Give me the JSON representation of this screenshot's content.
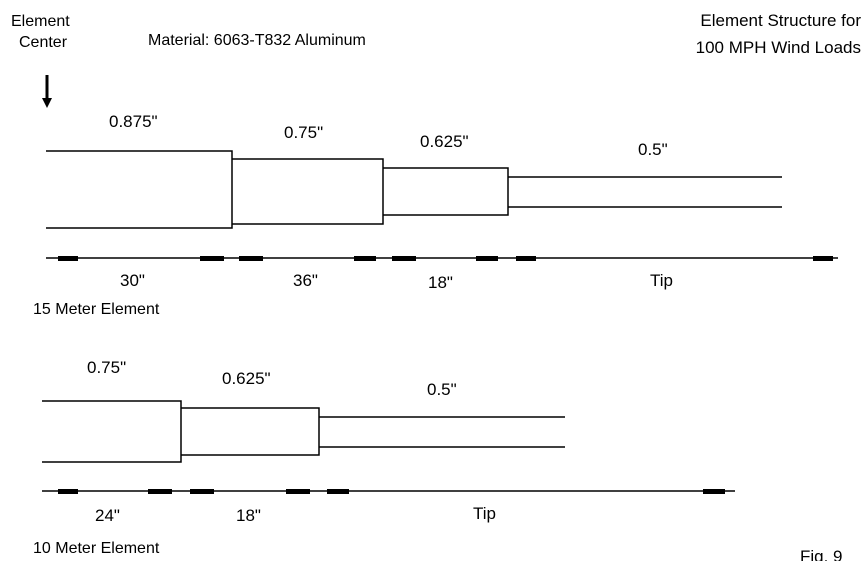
{
  "header": {
    "element_center_line1": "Element",
    "element_center_line2": "Center",
    "material": "Material: 6063-T832 Aluminum",
    "title_line1": "Element Structure for",
    "title_line2": "100 MPH Wind Loads"
  },
  "element15": {
    "diameters": [
      "0.875\"",
      "0.75\"",
      "0.625\"",
      "0.5\""
    ],
    "lengths": [
      "30\"",
      "36\"",
      "18\"",
      "Tip"
    ],
    "label": "15 Meter Element"
  },
  "element10": {
    "diameters": [
      "0.75\"",
      "0.625\"",
      "0.5\""
    ],
    "lengths": [
      "24\"",
      "18\"",
      "Tip"
    ],
    "label": "10 Meter Element"
  },
  "figure_label": "Fig. 9",
  "colors": {
    "ink": "#000000",
    "background": "#ffffff"
  }
}
